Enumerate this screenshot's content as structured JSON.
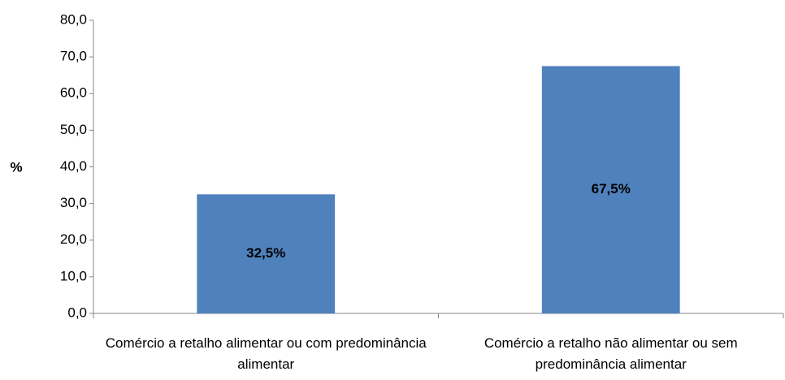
{
  "chart_data": {
    "type": "bar",
    "y_label": "%",
    "categories": [
      "Comércio a retalho alimentar  ou com predominância alimentar",
      "Comércio a retalho não alimentar ou sem predominância alimentar"
    ],
    "values": [
      32.5,
      67.5
    ],
    "value_labels": [
      "32,5%",
      "67,5%"
    ],
    "color": "#4f81bd",
    "ylim": [
      0,
      80
    ],
    "yticks": [
      {
        "value": 0,
        "label": "0,0"
      },
      {
        "value": 10,
        "label": "10,0"
      },
      {
        "value": 20,
        "label": "20,0"
      },
      {
        "value": 30,
        "label": "30,0"
      },
      {
        "value": 40,
        "label": "40,0"
      },
      {
        "value": 50,
        "label": "50,0"
      },
      {
        "value": 60,
        "label": "60,0"
      },
      {
        "value": 70,
        "label": "70,0"
      },
      {
        "value": 80,
        "label": "80,0"
      }
    ],
    "grid": false
  }
}
